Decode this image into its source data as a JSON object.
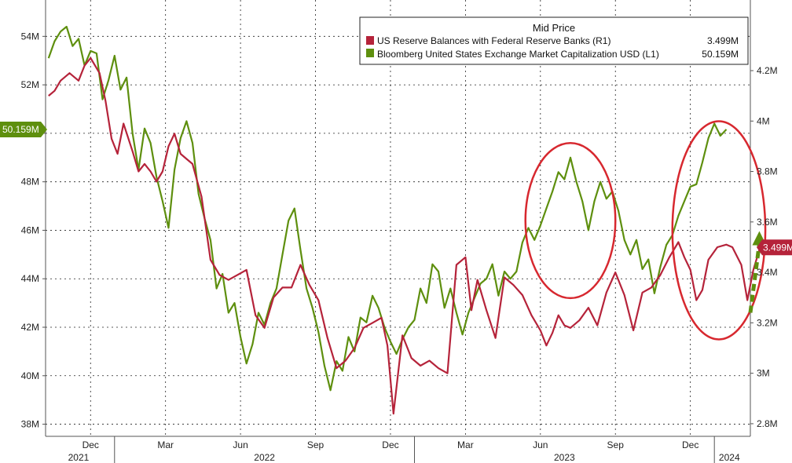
{
  "chart_data": {
    "type": "line",
    "title": "Mid Price",
    "colors": {
      "reserves": "#b5233a",
      "mktcap": "#5e8f0e",
      "circle": "#d7282f",
      "arrow": "#5e8f0e"
    },
    "legend": {
      "title": "Mid Price",
      "items": [
        {
          "name": "US Reserve Balances with Federal Reserve Banks  (R1)",
          "value": "3.499M",
          "color": "#b5233a"
        },
        {
          "name": "Bloomberg United States Exchange Market Capitalization USD  (L1)",
          "value": "50.159M",
          "color": "#5e8f0e"
        }
      ]
    },
    "left_axis": {
      "ticks": [
        "38M",
        "40M",
        "42M",
        "44M",
        "46M",
        "48M",
        "50M",
        "52M",
        "54M"
      ],
      "ylim": [
        37.5,
        55.5
      ],
      "current_label": "50.159M"
    },
    "right_axis": {
      "ticks": [
        "2.8M",
        "3M",
        "3.2M",
        "3.4M",
        "3.6M",
        "3.8M",
        "4M",
        "4.2M"
      ],
      "ylim": [
        2.75,
        4.48
      ],
      "current_label": "3.499M"
    },
    "x_month_labels": [
      {
        "label": "Dec",
        "t": 2021.92
      },
      {
        "label": "Mar",
        "t": 2022.17
      },
      {
        "label": "Jun",
        "t": 2022.42
      },
      {
        "label": "Sep",
        "t": 2022.67
      },
      {
        "label": "Dec",
        "t": 2022.92
      },
      {
        "label": "Mar",
        "t": 2023.17
      },
      {
        "label": "Jun",
        "t": 2023.42
      },
      {
        "label": "Sep",
        "t": 2023.67
      },
      {
        "label": "Dec",
        "t": 2023.92
      }
    ],
    "x_year_labels": [
      {
        "label": "2021",
        "t": 2021.88
      },
      {
        "label": "2022",
        "t": 2022.5
      },
      {
        "label": "2023",
        "t": 2023.5
      },
      {
        "label": "2024",
        "t": 2024.05
      }
    ],
    "xlim": [
      2021.77,
      2024.12
    ],
    "year_boundaries": [
      2022.0,
      2023.0,
      2024.0
    ],
    "series": [
      {
        "name": "Bloomberg United States Exchange Market Capitalization USD",
        "axis": "left",
        "points": [
          [
            2021.78,
            53.1
          ],
          [
            2021.8,
            53.8
          ],
          [
            2021.82,
            54.2
          ],
          [
            2021.84,
            54.4
          ],
          [
            2021.86,
            53.6
          ],
          [
            2021.88,
            53.9
          ],
          [
            2021.9,
            52.8
          ],
          [
            2021.92,
            53.4
          ],
          [
            2021.94,
            53.3
          ],
          [
            2021.96,
            51.4
          ],
          [
            2021.98,
            52.2
          ],
          [
            2022.0,
            53.2
          ],
          [
            2022.02,
            51.8
          ],
          [
            2022.04,
            52.3
          ],
          [
            2022.06,
            50.0
          ],
          [
            2022.08,
            48.5
          ],
          [
            2022.1,
            50.2
          ],
          [
            2022.12,
            49.6
          ],
          [
            2022.14,
            48.2
          ],
          [
            2022.16,
            47.2
          ],
          [
            2022.18,
            46.1
          ],
          [
            2022.2,
            48.5
          ],
          [
            2022.22,
            49.8
          ],
          [
            2022.24,
            50.5
          ],
          [
            2022.26,
            49.6
          ],
          [
            2022.28,
            47.5
          ],
          [
            2022.3,
            46.5
          ],
          [
            2022.32,
            45.6
          ],
          [
            2022.34,
            43.6
          ],
          [
            2022.36,
            44.2
          ],
          [
            2022.38,
            42.6
          ],
          [
            2022.4,
            43.0
          ],
          [
            2022.42,
            41.6
          ],
          [
            2022.44,
            40.5
          ],
          [
            2022.46,
            41.3
          ],
          [
            2022.48,
            42.6
          ],
          [
            2022.5,
            42.1
          ],
          [
            2022.52,
            43.0
          ],
          [
            2022.54,
            43.6
          ],
          [
            2022.56,
            45.0
          ],
          [
            2022.58,
            46.4
          ],
          [
            2022.6,
            46.9
          ],
          [
            2022.62,
            45.2
          ],
          [
            2022.64,
            43.6
          ],
          [
            2022.66,
            42.8
          ],
          [
            2022.68,
            41.8
          ],
          [
            2022.7,
            40.4
          ],
          [
            2022.72,
            39.4
          ],
          [
            2022.74,
            40.6
          ],
          [
            2022.76,
            40.2
          ],
          [
            2022.78,
            41.6
          ],
          [
            2022.8,
            41.0
          ],
          [
            2022.82,
            42.4
          ],
          [
            2022.84,
            42.2
          ],
          [
            2022.86,
            43.3
          ],
          [
            2022.88,
            42.8
          ],
          [
            2022.9,
            42.0
          ],
          [
            2022.92,
            41.4
          ],
          [
            2022.94,
            40.9
          ],
          [
            2022.96,
            41.5
          ],
          [
            2022.98,
            42.0
          ],
          [
            2023.0,
            42.3
          ],
          [
            2023.02,
            43.6
          ],
          [
            2023.04,
            43.0
          ],
          [
            2023.06,
            44.6
          ],
          [
            2023.08,
            44.3
          ],
          [
            2023.1,
            42.8
          ],
          [
            2023.12,
            43.6
          ],
          [
            2023.14,
            42.6
          ],
          [
            2023.16,
            41.7
          ],
          [
            2023.18,
            42.6
          ],
          [
            2023.2,
            43.2
          ],
          [
            2023.22,
            43.8
          ],
          [
            2023.24,
            44.0
          ],
          [
            2023.26,
            44.6
          ],
          [
            2023.28,
            43.3
          ],
          [
            2023.3,
            44.3
          ],
          [
            2023.32,
            44.0
          ],
          [
            2023.34,
            44.3
          ],
          [
            2023.36,
            45.5
          ],
          [
            2023.38,
            46.1
          ],
          [
            2023.4,
            45.6
          ],
          [
            2023.42,
            46.2
          ],
          [
            2023.44,
            46.9
          ],
          [
            2023.46,
            47.6
          ],
          [
            2023.48,
            48.4
          ],
          [
            2023.5,
            48.1
          ],
          [
            2023.52,
            49.0
          ],
          [
            2023.54,
            48.0
          ],
          [
            2023.56,
            47.2
          ],
          [
            2023.58,
            46.0
          ],
          [
            2023.6,
            47.2
          ],
          [
            2023.62,
            48.0
          ],
          [
            2023.64,
            47.3
          ],
          [
            2023.66,
            47.6
          ],
          [
            2023.68,
            46.8
          ],
          [
            2023.7,
            45.6
          ],
          [
            2023.72,
            45.0
          ],
          [
            2023.74,
            45.6
          ],
          [
            2023.76,
            44.4
          ],
          [
            2023.78,
            44.8
          ],
          [
            2023.8,
            43.4
          ],
          [
            2023.82,
            44.5
          ],
          [
            2023.84,
            45.4
          ],
          [
            2023.86,
            45.8
          ],
          [
            2023.88,
            46.6
          ],
          [
            2023.9,
            47.2
          ],
          [
            2023.92,
            47.8
          ],
          [
            2023.94,
            47.9
          ],
          [
            2023.96,
            48.8
          ],
          [
            2023.98,
            49.8
          ],
          [
            2024.0,
            50.4
          ],
          [
            2024.02,
            49.9
          ],
          [
            2024.04,
            50.16
          ]
        ]
      },
      {
        "name": "US Reserve Balances with Federal Reserve Banks",
        "axis": "right",
        "points": [
          [
            2021.78,
            4.1
          ],
          [
            2021.8,
            4.12
          ],
          [
            2021.82,
            4.16
          ],
          [
            2021.85,
            4.19
          ],
          [
            2021.88,
            4.16
          ],
          [
            2021.9,
            4.22
          ],
          [
            2021.92,
            4.25
          ],
          [
            2021.95,
            4.19
          ],
          [
            2021.97,
            4.08
          ],
          [
            2021.99,
            3.93
          ],
          [
            2022.01,
            3.87
          ],
          [
            2022.03,
            3.99
          ],
          [
            2022.06,
            3.88
          ],
          [
            2022.08,
            3.8
          ],
          [
            2022.1,
            3.83
          ],
          [
            2022.12,
            3.8
          ],
          [
            2022.14,
            3.76
          ],
          [
            2022.16,
            3.8
          ],
          [
            2022.18,
            3.9
          ],
          [
            2022.2,
            3.95
          ],
          [
            2022.22,
            3.87
          ],
          [
            2022.24,
            3.85
          ],
          [
            2022.26,
            3.83
          ],
          [
            2022.29,
            3.7
          ],
          [
            2022.32,
            3.45
          ],
          [
            2022.35,
            3.39
          ],
          [
            2022.38,
            3.37
          ],
          [
            2022.41,
            3.39
          ],
          [
            2022.44,
            3.41
          ],
          [
            2022.47,
            3.23
          ],
          [
            2022.5,
            3.18
          ],
          [
            2022.53,
            3.3
          ],
          [
            2022.56,
            3.34
          ],
          [
            2022.59,
            3.34
          ],
          [
            2022.62,
            3.43
          ],
          [
            2022.65,
            3.35
          ],
          [
            2022.68,
            3.29
          ],
          [
            2022.71,
            3.14
          ],
          [
            2022.74,
            3.02
          ],
          [
            2022.77,
            3.05
          ],
          [
            2022.8,
            3.1
          ],
          [
            2022.83,
            3.18
          ],
          [
            2022.86,
            3.2
          ],
          [
            2022.89,
            3.22
          ],
          [
            2022.91,
            3.11
          ],
          [
            2022.93,
            2.84
          ],
          [
            2022.96,
            3.15
          ],
          [
            2022.99,
            3.06
          ],
          [
            2023.02,
            3.03
          ],
          [
            2023.05,
            3.05
          ],
          [
            2023.08,
            3.02
          ],
          [
            2023.11,
            3.0
          ],
          [
            2023.14,
            3.43
          ],
          [
            2023.17,
            3.46
          ],
          [
            2023.19,
            3.25
          ],
          [
            2023.21,
            3.37
          ],
          [
            2023.24,
            3.25
          ],
          [
            2023.27,
            3.14
          ],
          [
            2023.3,
            3.38
          ],
          [
            2023.33,
            3.35
          ],
          [
            2023.36,
            3.31
          ],
          [
            2023.39,
            3.23
          ],
          [
            2023.42,
            3.17
          ],
          [
            2023.44,
            3.11
          ],
          [
            2023.46,
            3.16
          ],
          [
            2023.48,
            3.23
          ],
          [
            2023.5,
            3.19
          ],
          [
            2023.52,
            3.18
          ],
          [
            2023.55,
            3.21
          ],
          [
            2023.58,
            3.26
          ],
          [
            2023.61,
            3.19
          ],
          [
            2023.64,
            3.32
          ],
          [
            2023.67,
            3.4
          ],
          [
            2023.7,
            3.31
          ],
          [
            2023.73,
            3.17
          ],
          [
            2023.76,
            3.32
          ],
          [
            2023.79,
            3.34
          ],
          [
            2023.82,
            3.39
          ],
          [
            2023.85,
            3.46
          ],
          [
            2023.88,
            3.52
          ],
          [
            2023.9,
            3.46
          ],
          [
            2023.92,
            3.41
          ],
          [
            2023.94,
            3.29
          ],
          [
            2023.96,
            3.33
          ],
          [
            2023.98,
            3.45
          ],
          [
            2024.01,
            3.5
          ],
          [
            2024.04,
            3.51
          ],
          [
            2024.06,
            3.5
          ],
          [
            2024.09,
            3.43
          ],
          [
            2024.11,
            3.29
          ],
          [
            2024.13,
            3.41
          ],
          [
            2024.15,
            3.49
          ]
        ]
      }
    ],
    "annotations": [
      {
        "type": "ellipse",
        "t_range": [
          2023.37,
          2023.67
        ],
        "left_range": [
          43.2,
          49.6
        ]
      },
      {
        "type": "ellipse",
        "t_range": [
          2023.86,
          2024.17
        ],
        "left_range": [
          41.5,
          50.5
        ]
      },
      {
        "type": "arrow",
        "from": [
          2024.12,
          42.6
        ],
        "to": [
          2024.15,
          45.9
        ]
      }
    ]
  }
}
